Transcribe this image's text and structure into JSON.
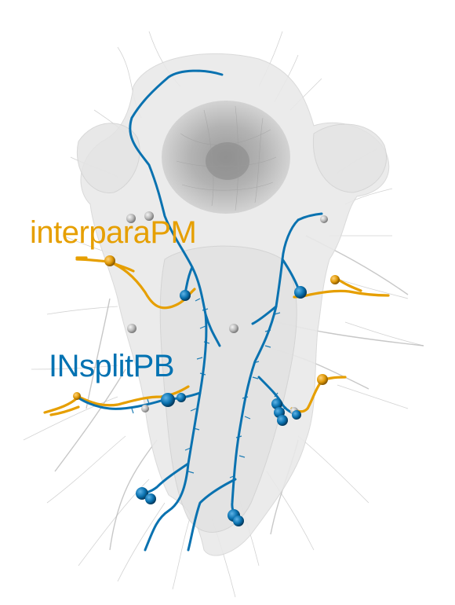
{
  "labels": {
    "neuron_type_1": "interparaPM",
    "neuron_type_2": "INsplitPB"
  },
  "colors": {
    "neuron_type_1": "#e69f00",
    "neuron_type_2": "#0072b2",
    "tissue_mesh": "#e9e9e9",
    "background_neurons": "#bdbdbd"
  }
}
